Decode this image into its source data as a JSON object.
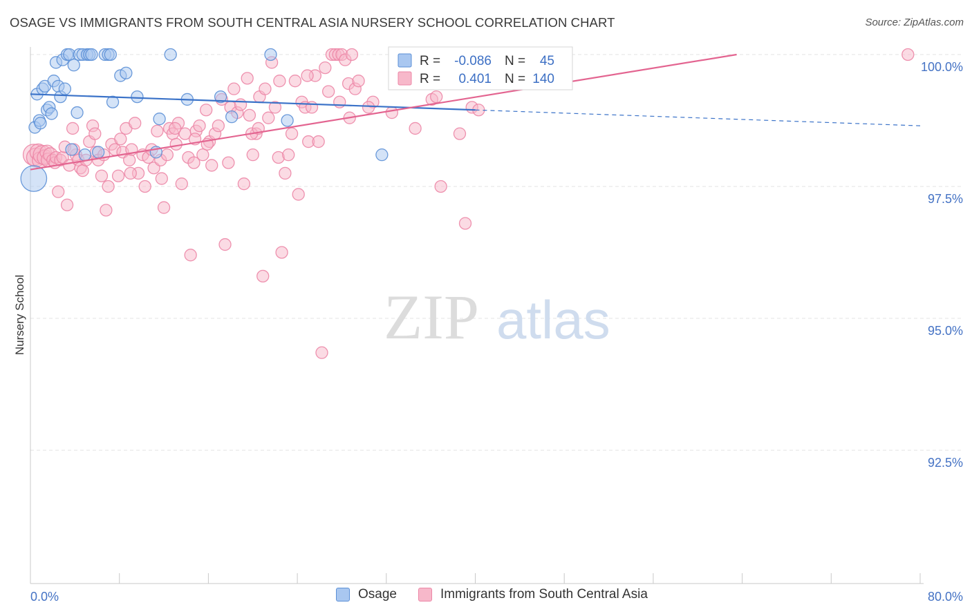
{
  "title": "OSAGE VS IMMIGRANTS FROM SOUTH CENTRAL ASIA NURSERY SCHOOL CORRELATION CHART",
  "source": "Source: ZipAtlas.com",
  "watermark": {
    "zip": "ZIP",
    "atlas": "atlas"
  },
  "colors": {
    "osage_fill": "#a9c7f0",
    "osage_stroke": "#5b8fd6",
    "osage_line": "#3a72c8",
    "imm_fill": "#f7b8ca",
    "imm_stroke": "#ec86a6",
    "imm_line": "#e36490",
    "tick": "#4472c4",
    "grid": "#e3e3e3"
  },
  "legend": {
    "rows": [
      {
        "r_label": "R =",
        "r_value": "-0.086",
        "n_label": "N =",
        "n_value": "45"
      },
      {
        "r_label": "R =",
        "r_value": "0.401",
        "n_label": "N =",
        "n_value": "140"
      }
    ]
  },
  "chart_data": {
    "type": "scatter",
    "title": "OSAGE VS IMMIGRANTS FROM SOUTH CENTRAL ASIA NURSERY SCHOOL CORRELATION CHART",
    "ylabel": "Nursery School",
    "xlabel": "",
    "xlim": [
      0,
      80
    ],
    "ylim": [
      90.2,
      100.6
    ],
    "y_ticks": [
      {
        "value": 92.5,
        "label": "92.5%"
      },
      {
        "value": 95.0,
        "label": "95.0%"
      },
      {
        "value": 97.5,
        "label": "97.5%"
      },
      {
        "value": 100.0,
        "label": "100.0%"
      }
    ],
    "x_tick_labels": [
      {
        "value": 0,
        "label": "0.0%"
      },
      {
        "value": 80,
        "label": "80.0%"
      }
    ],
    "x_minor_ticks": [
      0,
      8,
      16,
      24,
      32,
      40,
      48,
      56,
      64,
      72,
      80
    ],
    "grid": true,
    "legend_position": "top-center",
    "series": [
      {
        "name": "Osage",
        "r": -0.086,
        "n": 45,
        "trend": {
          "x0": 0,
          "y0": 99.25,
          "x1": 40,
          "y1": 98.95,
          "dashed_to_x": 80,
          "dashed_to_y": 98.65
        },
        "points": [
          [
            0.3,
            97.65,
            2.2
          ],
          [
            0.4,
            98.62,
            1
          ],
          [
            0.6,
            99.25,
            1
          ],
          [
            0.8,
            98.75,
            1
          ],
          [
            0.9,
            98.7,
            1
          ],
          [
            1.1,
            99.35,
            1
          ],
          [
            1.3,
            99.4,
            1
          ],
          [
            1.5,
            98.95,
            1
          ],
          [
            1.7,
            99.0,
            1
          ],
          [
            1.9,
            98.88,
            1
          ],
          [
            2.1,
            99.5,
            1
          ],
          [
            2.3,
            99.85,
            1
          ],
          [
            2.5,
            99.4,
            1
          ],
          [
            2.7,
            99.2,
            1
          ],
          [
            2.9,
            99.9,
            1
          ],
          [
            3.1,
            99.35,
            1
          ],
          [
            3.3,
            100.0,
            1
          ],
          [
            3.5,
            100.0,
            1
          ],
          [
            3.7,
            98.2,
            1
          ],
          [
            3.9,
            99.8,
            1
          ],
          [
            4.2,
            98.9,
            1
          ],
          [
            4.4,
            100.0,
            1
          ],
          [
            4.7,
            100.0,
            1
          ],
          [
            4.9,
            98.1,
            1
          ],
          [
            5.1,
            100.0,
            1
          ],
          [
            5.3,
            100.0,
            1
          ],
          [
            5.5,
            100.0,
            1
          ],
          [
            6.1,
            98.15,
            1
          ],
          [
            6.7,
            100.0,
            1
          ],
          [
            7.0,
            100.0,
            1
          ],
          [
            7.2,
            100.0,
            1
          ],
          [
            7.4,
            99.1,
            1
          ],
          [
            8.1,
            99.6,
            1
          ],
          [
            8.6,
            99.65,
            1
          ],
          [
            9.6,
            99.2,
            1
          ],
          [
            11.3,
            98.15,
            1
          ],
          [
            11.6,
            98.78,
            1
          ],
          [
            12.6,
            100.0,
            1
          ],
          [
            14.1,
            99.15,
            1
          ],
          [
            17.1,
            99.2,
            1
          ],
          [
            18.1,
            98.82,
            1
          ],
          [
            21.6,
            100.0,
            1
          ],
          [
            23.1,
            98.75,
            1
          ],
          [
            31.6,
            98.1,
            1
          ],
          [
            34.4,
            100.0,
            1
          ]
        ]
      },
      {
        "name": "Immigrants from South Central Asia",
        "r": 0.401,
        "n": 140,
        "trend": {
          "x0": 0,
          "y0": 97.82,
          "x1": 63.5,
          "y1": 100.0
        },
        "points": [
          [
            0.3,
            98.1,
            1.8
          ],
          [
            0.5,
            98.05,
            1.6
          ],
          [
            0.7,
            98.15,
            1.4
          ],
          [
            0.9,
            98.0,
            1.4
          ],
          [
            1.1,
            98.1,
            1.6
          ],
          [
            1.3,
            98.05,
            1.3
          ],
          [
            1.5,
            98.15,
            1.2
          ],
          [
            1.6,
            98.0,
            1.2
          ],
          [
            1.8,
            98.1,
            1.2
          ],
          [
            2.0,
            98.0,
            1
          ],
          [
            2.2,
            97.95,
            1
          ],
          [
            2.3,
            98.05,
            1
          ],
          [
            2.5,
            97.4,
            1
          ],
          [
            2.7,
            98.0,
            1
          ],
          [
            2.9,
            98.05,
            1
          ],
          [
            3.1,
            98.25,
            1
          ],
          [
            3.3,
            97.15,
            1
          ],
          [
            3.5,
            97.9,
            1
          ],
          [
            3.8,
            98.6,
            1
          ],
          [
            4.1,
            98.1,
            1
          ],
          [
            4.3,
            98.0,
            1
          ],
          [
            4.5,
            97.85,
            1
          ],
          [
            4.7,
            97.8,
            1
          ],
          [
            5.0,
            98.0,
            1
          ],
          [
            5.3,
            98.35,
            1
          ],
          [
            5.6,
            98.65,
            1
          ],
          [
            5.9,
            98.15,
            1
          ],
          [
            6.1,
            98.0,
            1
          ],
          [
            6.4,
            97.7,
            1
          ],
          [
            6.6,
            98.1,
            1
          ],
          [
            6.8,
            97.05,
            1
          ],
          [
            7.0,
            97.5,
            1
          ],
          [
            7.3,
            98.3,
            1
          ],
          [
            7.6,
            98.2,
            1
          ],
          [
            7.9,
            97.7,
            1
          ],
          [
            8.1,
            98.4,
            1
          ],
          [
            8.3,
            98.15,
            1
          ],
          [
            8.6,
            98.6,
            1
          ],
          [
            8.9,
            98.0,
            1
          ],
          [
            9.1,
            98.2,
            1
          ],
          [
            9.4,
            98.7,
            1
          ],
          [
            9.7,
            97.75,
            1
          ],
          [
            10.1,
            98.1,
            1
          ],
          [
            10.3,
            97.5,
            1
          ],
          [
            10.6,
            98.05,
            1
          ],
          [
            10.9,
            98.2,
            1
          ],
          [
            11.1,
            97.85,
            1
          ],
          [
            11.4,
            98.55,
            1
          ],
          [
            11.7,
            98.0,
            1
          ],
          [
            12.0,
            97.1,
            1
          ],
          [
            12.3,
            98.1,
            1
          ],
          [
            12.5,
            98.6,
            1
          ],
          [
            12.8,
            98.5,
            1
          ],
          [
            13.1,
            98.3,
            1
          ],
          [
            13.3,
            98.7,
            1
          ],
          [
            13.6,
            97.55,
            1
          ],
          [
            13.9,
            98.5,
            1
          ],
          [
            14.2,
            98.05,
            1
          ],
          [
            14.4,
            96.2,
            1
          ],
          [
            14.7,
            97.95,
            1
          ],
          [
            14.9,
            98.55,
            1
          ],
          [
            15.2,
            98.65,
            1
          ],
          [
            15.5,
            98.1,
            1
          ],
          [
            15.8,
            98.95,
            1
          ],
          [
            16.1,
            98.35,
            1
          ],
          [
            16.3,
            97.9,
            1
          ],
          [
            16.6,
            98.5,
            1
          ],
          [
            16.9,
            98.65,
            1
          ],
          [
            17.2,
            99.15,
            1
          ],
          [
            17.5,
            96.4,
            1
          ],
          [
            17.8,
            97.95,
            1
          ],
          [
            18.0,
            99.0,
            1
          ],
          [
            18.3,
            99.35,
            1
          ],
          [
            18.6,
            98.9,
            1
          ],
          [
            18.9,
            99.05,
            1
          ],
          [
            19.2,
            97.55,
            1
          ],
          [
            19.5,
            99.55,
            1
          ],
          [
            19.7,
            98.85,
            1
          ],
          [
            20.0,
            98.1,
            1
          ],
          [
            20.3,
            98.5,
            1
          ],
          [
            20.6,
            99.2,
            1
          ],
          [
            20.9,
            95.8,
            1
          ],
          [
            21.1,
            99.35,
            1
          ],
          [
            21.4,
            98.8,
            1
          ],
          [
            21.7,
            99.85,
            1
          ],
          [
            22.0,
            99.0,
            1
          ],
          [
            22.3,
            98.05,
            1
          ],
          [
            22.6,
            96.25,
            1
          ],
          [
            22.9,
            97.75,
            1
          ],
          [
            23.2,
            98.1,
            1
          ],
          [
            23.5,
            98.5,
            1
          ],
          [
            23.8,
            99.5,
            1
          ],
          [
            24.1,
            97.35,
            1
          ],
          [
            24.4,
            99.1,
            1
          ],
          [
            24.7,
            99.0,
            1
          ],
          [
            25.0,
            98.35,
            1
          ],
          [
            25.3,
            99.0,
            1
          ],
          [
            25.6,
            99.6,
            1
          ],
          [
            25.9,
            98.35,
            1
          ],
          [
            26.2,
            94.35,
            1
          ],
          [
            26.5,
            99.75,
            1
          ],
          [
            26.8,
            99.3,
            1
          ],
          [
            27.1,
            100.0,
            1
          ],
          [
            27.4,
            100.0,
            1
          ],
          [
            27.7,
            100.0,
            1
          ],
          [
            28.0,
            100.0,
            1
          ],
          [
            28.3,
            99.9,
            1
          ],
          [
            28.6,
            99.45,
            1
          ],
          [
            28.9,
            100.0,
            1
          ],
          [
            29.2,
            99.35,
            1
          ],
          [
            29.5,
            99.5,
            1
          ],
          [
            30.8,
            99.1,
            1
          ],
          [
            33.1,
            100.0,
            1
          ],
          [
            36.1,
            99.15,
            1
          ],
          [
            36.9,
            97.5,
            1
          ],
          [
            38.1,
            100.0,
            1
          ],
          [
            38.6,
            98.5,
            1
          ],
          [
            39.1,
            96.8,
            1
          ],
          [
            39.7,
            99.0,
            1
          ],
          [
            40.3,
            98.95,
            1
          ],
          [
            41.1,
            100.0,
            1
          ],
          [
            41.7,
            99.55,
            1
          ],
          [
            78.9,
            100.0,
            1
          ],
          [
            3.9,
            98.2,
            1
          ],
          [
            5.8,
            98.5,
            1
          ],
          [
            9.0,
            97.75,
            1
          ],
          [
            11.8,
            97.65,
            1
          ],
          [
            13.0,
            98.6,
            1
          ],
          [
            14.8,
            98.4,
            1
          ],
          [
            15.9,
            98.3,
            1
          ],
          [
            19.9,
            98.5,
            1
          ],
          [
            20.5,
            98.6,
            1
          ],
          [
            22.4,
            99.5,
            1
          ],
          [
            24.9,
            99.6,
            1
          ],
          [
            27.8,
            99.1,
            1
          ],
          [
            28.7,
            98.8,
            1
          ],
          [
            30.4,
            99.0,
            1
          ],
          [
            32.5,
            98.9,
            1
          ],
          [
            34.6,
            98.6,
            1
          ],
          [
            36.5,
            99.2,
            1
          ]
        ]
      }
    ]
  }
}
